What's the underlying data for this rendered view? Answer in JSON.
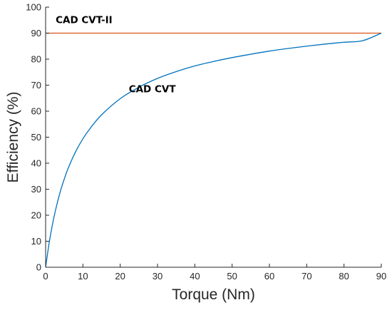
{
  "chart_data": {
    "type": "line",
    "xlabel": "Torque (Nm)",
    "ylabel": "Efficiency (%)",
    "xlim": [
      0,
      90
    ],
    "ylim": [
      0,
      100
    ],
    "xticks": [
      0,
      10,
      20,
      30,
      40,
      50,
      60,
      70,
      80,
      90
    ],
    "yticks": [
      0,
      10,
      20,
      30,
      40,
      50,
      60,
      70,
      80,
      90,
      100
    ],
    "grid": false,
    "series": [
      {
        "name": "CAD CVT-II",
        "color": "#d95319",
        "x": [
          0,
          90
        ],
        "y": [
          90,
          90
        ]
      },
      {
        "name": "CAD CVT",
        "color": "#0072bd",
        "x": [
          0,
          1,
          2,
          3,
          4,
          5,
          6,
          8,
          10,
          12,
          15,
          20,
          25,
          30,
          35,
          40,
          45,
          50,
          55,
          60,
          65,
          70,
          75,
          80,
          85,
          90
        ],
        "y": [
          0,
          9.8,
          17.6,
          24.0,
          29.4,
          33.9,
          37.9,
          44.3,
          49.4,
          53.5,
          58.6,
          64.8,
          69.2,
          72.6,
          75.2,
          77.4,
          79.1,
          80.6,
          81.9,
          83.1,
          84.1,
          85.0,
          85.8,
          86.5,
          87.1,
          90.0
        ]
      }
    ],
    "annotations": [
      {
        "text": "CAD CVT-II",
        "x": 2.7,
        "y": 93.8
      },
      {
        "text": "CAD CVT",
        "x": 22.3,
        "y": 67.2
      }
    ]
  }
}
